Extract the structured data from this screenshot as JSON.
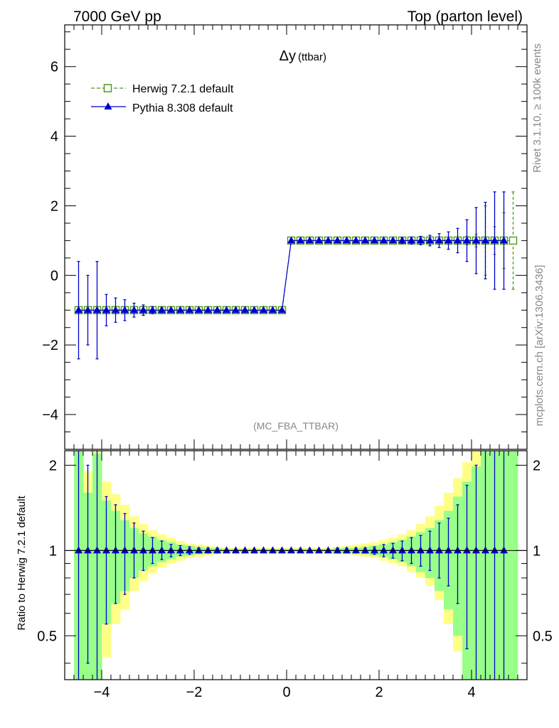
{
  "header": {
    "left": "7000 GeV pp",
    "right": "Top (parton level)"
  },
  "side": {
    "rivet": "Rivet 3.1.10, ≥ 100k events",
    "mcplots": "mcplots.cern.ch [arXiv:1306.3436]"
  },
  "colors": {
    "herwig": "#4a9a1a",
    "pythia": "#0000cc",
    "band_inner": "#99ff88",
    "band_outer": "#ffff88"
  },
  "chart_data": [
    {
      "type": "line",
      "title": "Δy",
      "title_sub": "(ttbar)",
      "watermark": "(MC_FBA_TTBAR)",
      "xlim": [
        -4.8,
        5.2
      ],
      "ylim": [
        -5,
        7.2
      ],
      "yticks": [
        -4,
        -2,
        0,
        2,
        4,
        6
      ],
      "yticklabels": [
        "−4",
        "−2",
        "0",
        "2",
        "4",
        "6"
      ],
      "legend_position": "top-left",
      "series": [
        {
          "name": "Herwig 7.2.1 default",
          "marker": "open-square",
          "style": "dashed",
          "x": [
            -4.5,
            -4.3,
            -4.1,
            -3.9,
            -3.7,
            -3.5,
            -3.3,
            -3.1,
            -2.9,
            -2.7,
            -2.5,
            -2.3,
            -2.1,
            -1.9,
            -1.7,
            -1.5,
            -1.3,
            -1.1,
            -0.9,
            -0.7,
            -0.5,
            -0.3,
            -0.1,
            0.1,
            0.3,
            0.5,
            0.7,
            0.9,
            1.1,
            1.3,
            1.5,
            1.7,
            1.9,
            2.1,
            2.3,
            2.5,
            2.7,
            2.9,
            3.1,
            3.3,
            3.5,
            3.7,
            3.9,
            4.1,
            4.3,
            4.5,
            4.7,
            4.9
          ],
          "y": [
            -1,
            -1,
            -1,
            -1,
            -1,
            -1,
            -1,
            -1,
            -1,
            -1,
            -1,
            -1,
            -1,
            -1,
            -1,
            -1,
            -1,
            -1,
            -1,
            -1,
            -1,
            -1,
            -1,
            1,
            1,
            1,
            1,
            1,
            1,
            1,
            1,
            1,
            1,
            1,
            1,
            1,
            1,
            1,
            1,
            1,
            1,
            1,
            1,
            1,
            1,
            1,
            1,
            1
          ],
          "err": [
            0,
            0,
            0,
            0,
            0,
            0,
            0,
            0,
            0,
            0,
            0,
            0,
            0,
            0,
            0,
            0,
            0,
            0,
            0,
            0,
            0,
            0,
            0,
            0,
            0,
            0,
            0,
            0,
            0,
            0,
            0,
            0,
            0,
            0,
            0,
            0,
            0,
            0,
            0,
            0,
            0.05,
            0.08,
            0.12,
            0.18,
            1.0,
            0.4,
            0.8,
            1.4
          ]
        },
        {
          "name": "Pythia 8.308 default",
          "marker": "filled-triangle",
          "style": "solid",
          "x": [
            -4.5,
            -4.3,
            -4.1,
            -3.9,
            -3.7,
            -3.5,
            -3.3,
            -3.1,
            -2.9,
            -2.7,
            -2.5,
            -2.3,
            -2.1,
            -1.9,
            -1.7,
            -1.5,
            -1.3,
            -1.1,
            -0.9,
            -0.7,
            -0.5,
            -0.3,
            -0.1,
            0.1,
            0.3,
            0.5,
            0.7,
            0.9,
            1.1,
            1.3,
            1.5,
            1.7,
            1.9,
            2.1,
            2.3,
            2.5,
            2.7,
            2.9,
            3.1,
            3.3,
            3.5,
            3.7,
            3.9,
            4.1,
            4.3,
            4.5,
            4.7
          ],
          "y": [
            -1,
            -1,
            -1,
            -1,
            -1,
            -1,
            -1,
            -1,
            -1,
            -1,
            -1,
            -1,
            -1,
            -1,
            -1,
            -1,
            -1,
            -1,
            -1,
            -1,
            -1,
            -1,
            -1,
            1,
            1,
            1,
            1,
            1,
            1,
            1,
            1,
            1,
            1,
            1,
            1,
            1,
            1,
            1,
            1,
            1,
            1,
            1,
            1,
            1,
            1,
            1,
            1
          ],
          "err": [
            1.4,
            1.0,
            1.4,
            0.45,
            0.35,
            0.3,
            0.2,
            0.15,
            0.1,
            0.07,
            0.05,
            0.04,
            0.03,
            0.02,
            0.02,
            0.02,
            0.01,
            0.01,
            0.01,
            0.01,
            0.01,
            0.01,
            0.01,
            0.01,
            0.01,
            0.01,
            0.01,
            0.01,
            0.02,
            0.02,
            0.02,
            0.02,
            0.03,
            0.05,
            0.06,
            0.08,
            0.1,
            0.12,
            0.15,
            0.2,
            0.25,
            0.35,
            0.6,
            0.95,
            1.1,
            1.4,
            1.4
          ]
        }
      ]
    },
    {
      "type": "line",
      "ylabel": "Ratio to Herwig 7.2.1 default",
      "xlim": [
        -4.8,
        5.2
      ],
      "ylim": [
        0.35,
        2.25
      ],
      "ylog": true,
      "xticks": [
        -4,
        -2,
        0,
        2,
        4
      ],
      "xticklabels": [
        "−4",
        "−2",
        "0",
        "2",
        "4"
      ],
      "yticks": [
        0.5,
        1,
        2
      ],
      "yticklabels": [
        "0.5",
        "1",
        "2"
      ],
      "bands": {
        "bin_edges": [
          -4.6,
          -4.4,
          -4.2,
          -4.0,
          -3.8,
          -3.6,
          -3.4,
          -3.2,
          -3.0,
          -2.8,
          -2.6,
          -2.4,
          -2.2,
          -2.0,
          -1.8,
          -1.6,
          -1.4,
          -1.2,
          -1.0,
          -0.8,
          -0.6,
          -0.4,
          -0.2,
          0.0,
          0.2,
          0.4,
          0.6,
          0.8,
          1.0,
          1.2,
          1.4,
          1.6,
          1.8,
          2.0,
          2.2,
          2.4,
          2.6,
          2.8,
          3.0,
          3.2,
          3.4,
          3.6,
          3.8,
          4.0,
          4.2,
          4.4,
          4.6,
          4.8,
          5.0
        ],
        "inner_low": [
          0.35,
          0.35,
          0.35,
          0.55,
          0.65,
          0.72,
          0.8,
          0.85,
          0.88,
          0.91,
          0.93,
          0.95,
          0.96,
          0.97,
          0.98,
          0.98,
          0.99,
          0.99,
          0.99,
          0.99,
          0.99,
          0.99,
          0.99,
          0.99,
          0.99,
          0.99,
          0.99,
          0.99,
          0.98,
          0.98,
          0.98,
          0.97,
          0.96,
          0.95,
          0.93,
          0.91,
          0.88,
          0.84,
          0.8,
          0.72,
          0.62,
          0.5,
          0.35,
          0.35,
          0.35,
          0.35,
          0.35,
          0.35
        ],
        "inner_high": [
          2.25,
          1.6,
          2.2,
          1.5,
          1.38,
          1.28,
          1.2,
          1.15,
          1.12,
          1.09,
          1.07,
          1.05,
          1.04,
          1.03,
          1.02,
          1.02,
          1.01,
          1.01,
          1.01,
          1.01,
          1.01,
          1.01,
          1.01,
          1.01,
          1.01,
          1.01,
          1.01,
          1.01,
          1.02,
          1.02,
          1.02,
          1.03,
          1.04,
          1.05,
          1.07,
          1.09,
          1.12,
          1.16,
          1.2,
          1.28,
          1.38,
          1.55,
          1.75,
          1.98,
          2.25,
          2.25,
          2.25,
          2.25
        ],
        "outer_low": [
          0.35,
          0.35,
          0.35,
          0.42,
          0.55,
          0.62,
          0.72,
          0.78,
          0.83,
          0.87,
          0.9,
          0.92,
          0.94,
          0.95,
          0.96,
          0.97,
          0.98,
          0.98,
          0.98,
          0.98,
          0.98,
          0.98,
          0.98,
          0.98,
          0.98,
          0.98,
          0.98,
          0.98,
          0.97,
          0.97,
          0.96,
          0.95,
          0.94,
          0.92,
          0.9,
          0.88,
          0.84,
          0.8,
          0.75,
          0.67,
          0.55,
          0.44,
          0.35,
          0.35,
          0.35,
          0.35,
          0.35,
          0.35
        ],
        "outer_high": [
          2.25,
          1.9,
          2.25,
          1.75,
          1.58,
          1.45,
          1.32,
          1.24,
          1.18,
          1.14,
          1.11,
          1.08,
          1.06,
          1.05,
          1.04,
          1.03,
          1.02,
          1.02,
          1.02,
          1.02,
          1.02,
          1.02,
          1.02,
          1.02,
          1.02,
          1.02,
          1.02,
          1.02,
          1.03,
          1.04,
          1.05,
          1.06,
          1.07,
          1.09,
          1.11,
          1.14,
          1.18,
          1.24,
          1.32,
          1.44,
          1.6,
          1.8,
          2.05,
          2.25,
          2.25,
          2.25,
          2.25,
          2.25
        ]
      },
      "series": [
        {
          "name": "Pythia 8.308 default",
          "x": [
            -4.5,
            -4.3,
            -4.1,
            -3.9,
            -3.7,
            -3.5,
            -3.3,
            -3.1,
            -2.9,
            -2.7,
            -2.5,
            -2.3,
            -2.1,
            -1.9,
            -1.7,
            -1.5,
            -1.3,
            -1.1,
            -0.9,
            -0.7,
            -0.5,
            -0.3,
            -0.1,
            0.1,
            0.3,
            0.5,
            0.7,
            0.9,
            1.1,
            1.3,
            1.5,
            1.7,
            1.9,
            2.1,
            2.3,
            2.5,
            2.7,
            2.9,
            3.1,
            3.3,
            3.5,
            3.7,
            3.9,
            4.1,
            4.3,
            4.5,
            4.7
          ],
          "y": [
            1,
            1,
            1,
            1,
            1,
            1,
            1,
            1,
            1,
            1,
            1,
            1,
            1,
            1,
            1,
            1,
            1,
            1,
            1,
            1,
            1,
            1,
            1,
            1,
            1,
            1,
            1,
            1,
            1,
            1,
            1,
            1,
            1,
            1,
            1,
            1,
            1,
            1,
            1,
            1,
            1,
            1,
            1,
            1,
            1,
            1,
            1
          ],
          "err_low": [
            0.65,
            0.6,
            0.65,
            0.45,
            0.35,
            0.3,
            0.2,
            0.15,
            0.1,
            0.07,
            0.05,
            0.04,
            0.03,
            0.02,
            0.02,
            0.02,
            0.01,
            0.01,
            0.01,
            0.01,
            0.01,
            0.01,
            0.01,
            0.01,
            0.01,
            0.01,
            0.01,
            0.01,
            0.02,
            0.02,
            0.02,
            0.02,
            0.03,
            0.05,
            0.06,
            0.08,
            0.1,
            0.12,
            0.15,
            0.2,
            0.25,
            0.35,
            0.55,
            0.65,
            0.65,
            0.65,
            0.65
          ],
          "err_high": [
            1.3,
            1.0,
            1.3,
            0.55,
            0.45,
            0.35,
            0.25,
            0.17,
            0.11,
            0.08,
            0.05,
            0.04,
            0.03,
            0.02,
            0.02,
            0.02,
            0.01,
            0.01,
            0.01,
            0.01,
            0.01,
            0.01,
            0.01,
            0.01,
            0.01,
            0.01,
            0.01,
            0.01,
            0.02,
            0.02,
            0.02,
            0.02,
            0.03,
            0.05,
            0.06,
            0.08,
            0.11,
            0.13,
            0.17,
            0.25,
            0.3,
            0.45,
            0.7,
            1.0,
            1.3,
            1.3,
            1.3
          ]
        }
      ]
    }
  ]
}
